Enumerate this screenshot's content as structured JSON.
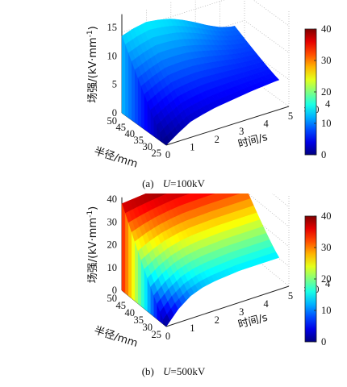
{
  "chart_data": [
    {
      "type": "surface",
      "panel_label": "(a)",
      "panel_variable": "U",
      "panel_value": "100kV",
      "xlabel": "时间/s",
      "x_multiplier": "×10",
      "x_multiplier_exp": "4",
      "ylabel": "半径/mm",
      "zlabel": "场强/(kV·mm",
      "zlabel_exp": "-1",
      "zlabel_end": ")",
      "x_ticks": [
        "0",
        "1",
        "2",
        "3",
        "4",
        "5"
      ],
      "y_ticks": [
        "50",
        "45",
        "40",
        "35",
        "30",
        "25"
      ],
      "z_ticks": [
        "0",
        "5",
        "10",
        "15"
      ],
      "xlim": [
        0,
        5
      ],
      "ylim": [
        25,
        50
      ],
      "zlim": [
        0,
        17
      ],
      "colorbar_ticks": [
        "0",
        "10",
        "20",
        "30",
        "40"
      ],
      "colorbar_range": [
        0,
        40
      ],
      "colormap": "jet",
      "surface_profile": {
        "time_x1e4": [
          0,
          0.5,
          1,
          1.5,
          2,
          2.5,
          3,
          3.5,
          4,
          4.5
        ],
        "field_at_r25": [
          0,
          1.5,
          2.8,
          3.4,
          3.9,
          4.2,
          4.5,
          4.8,
          5.0,
          5.2
        ],
        "field_at_r50": [
          13.5,
          14.2,
          14.6,
          14.3,
          13.8,
          12.9,
          11.8,
          10.6,
          9.6,
          9.0
        ]
      }
    },
    {
      "type": "surface",
      "panel_label": "(b)",
      "panel_variable": "U",
      "panel_value": "500kV",
      "xlabel": "时间/s",
      "x_multiplier": "×10",
      "x_multiplier_exp": "4",
      "ylabel": "半径/mm",
      "zlabel": "场强/(kV·mm",
      "zlabel_exp": "-1",
      "zlabel_end": ")",
      "x_ticks": [
        "0",
        "1",
        "2",
        "3",
        "4",
        "5"
      ],
      "y_ticks": [
        "50",
        "45",
        "40",
        "35",
        "30",
        "25"
      ],
      "z_ticks": [
        "0",
        "10",
        "20",
        "30",
        "40"
      ],
      "xlim": [
        0,
        5
      ],
      "ylim": [
        25,
        50
      ],
      "zlim": [
        0,
        40
      ],
      "colorbar_ticks": [
        "0",
        "10",
        "20",
        "30",
        "40"
      ],
      "colorbar_range": [
        0,
        40
      ],
      "colormap": "jet",
      "surface_profile": {
        "time_x1e4": [
          0,
          0.5,
          1,
          1.5,
          2,
          2.5,
          3,
          3.5,
          4,
          4.5
        ],
        "field_at_r25": [
          0,
          6,
          10,
          12,
          13,
          13.5,
          14,
          14,
          14,
          14
        ],
        "field_at_r50": [
          38,
          38.5,
          39,
          39.5,
          40,
          40,
          40,
          40,
          40,
          40
        ]
      }
    }
  ]
}
